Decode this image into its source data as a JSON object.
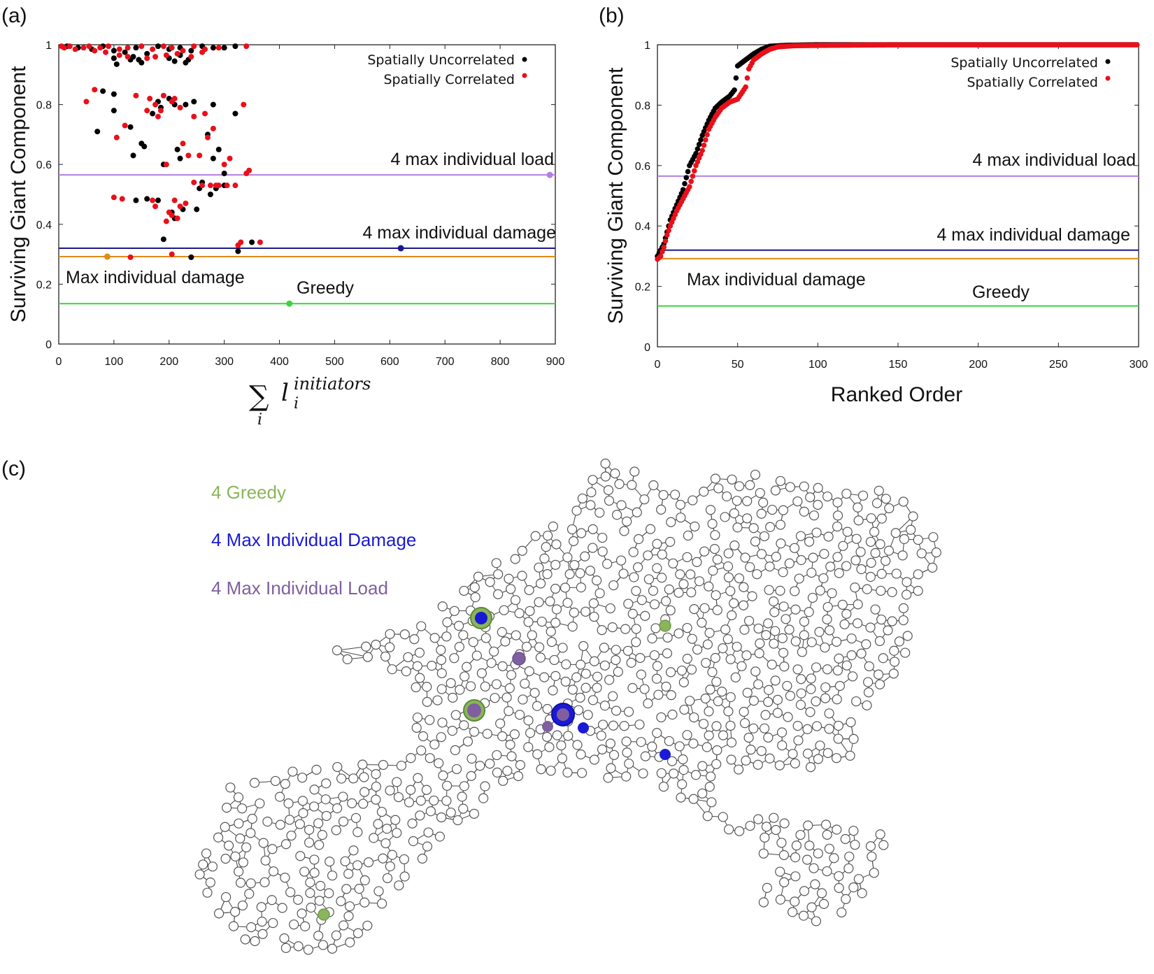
{
  "panels": {
    "a": {
      "label": "(a)",
      "chart_data": {
        "type": "scatter",
        "ylabel": "Surviving Giant Component",
        "xlabel": "∑ l_i^initiators",
        "xlabel_parts": {
          "sum": "∑",
          "base": "l",
          "sub": "i",
          "sup": "initiators",
          "under": "i"
        },
        "xlim": [
          0,
          900
        ],
        "ylim": [
          0,
          1
        ],
        "xticks": [
          "0",
          "100",
          "200",
          "300",
          "400",
          "500",
          "600",
          "700",
          "800",
          "900"
        ],
        "yticks": [
          "0",
          "0.2",
          "0.4",
          "0.6",
          "0.8",
          "1"
        ],
        "legend": {
          "placement": "top-right",
          "entries": [
            "Spatially Uncorrelated",
            "Spatially Correlated"
          ]
        },
        "reference_lines": [
          {
            "name": "4 max individual load",
            "label": "4 max individual load",
            "y": 0.565,
            "color": "#b57fe0",
            "marker_x": 890
          },
          {
            "name": "4 max individual damage",
            "label": "4 max individual damage",
            "y": 0.32,
            "color": "#1a1a8c",
            "marker_x": 620
          },
          {
            "name": "Max individual damage",
            "label": "Max individual damage",
            "y": 0.292,
            "color": "#e08a1a",
            "marker_x": 88
          },
          {
            "name": "Greedy",
            "label": "Greedy",
            "y": 0.135,
            "color": "#39d639",
            "marker_x": 418
          }
        ],
        "series": [
          {
            "name": "Spatially Uncorrelated",
            "color": "#000000",
            "points": [
              [
                15,
                0.995
              ],
              [
                35,
                0.99
              ],
              [
                60,
                0.985
              ],
              [
                80,
                0.995
              ],
              [
                100,
                0.98
              ],
              [
                120,
                0.975
              ],
              [
                140,
                0.99
              ],
              [
                160,
                0.97
              ],
              [
                180,
                0.995
              ],
              [
                200,
                0.985
              ],
              [
                220,
                0.99
              ],
              [
                240,
                0.98
              ],
              [
                260,
                0.995
              ],
              [
                280,
                0.99
              ],
              [
                300,
                0.99
              ],
              [
                320,
                0.995
              ],
              [
                100,
                0.955
              ],
              [
                105,
                0.935
              ],
              [
                130,
                0.95
              ],
              [
                135,
                0.96
              ],
              [
                145,
                0.95
              ],
              [
                150,
                0.94
              ],
              [
                200,
                0.955
              ],
              [
                210,
                0.945
              ],
              [
                220,
                0.965
              ],
              [
                230,
                0.94
              ],
              [
                235,
                0.95
              ],
              [
                70,
                0.71
              ],
              [
                80,
                0.845
              ],
              [
                100,
                0.835
              ],
              [
                100,
                0.78
              ],
              [
                130,
                0.725
              ],
              [
                135,
                0.63
              ],
              [
                150,
                0.67
              ],
              [
                155,
                0.66
              ],
              [
                170,
                0.77
              ],
              [
                180,
                0.81
              ],
              [
                185,
                0.79
              ],
              [
                190,
                0.6
              ],
              [
                200,
                0.82
              ],
              [
                210,
                0.8
              ],
              [
                215,
                0.65
              ],
              [
                220,
                0.62
              ],
              [
                230,
                0.8
              ],
              [
                245,
                0.81
              ],
              [
                250,
                0.45
              ],
              [
                255,
                0.52
              ],
              [
                260,
                0.54
              ],
              [
                270,
                0.7
              ],
              [
                280,
                0.8
              ],
              [
                285,
                0.52
              ],
              [
                290,
                0.65
              ],
              [
                300,
                0.57
              ],
              [
                320,
                0.77
              ],
              [
                140,
                0.48
              ],
              [
                160,
                0.485
              ],
              [
                180,
                0.48
              ],
              [
                190,
                0.35
              ],
              [
                205,
                0.44
              ],
              [
                210,
                0.42
              ],
              [
                225,
                0.45
              ],
              [
                240,
                0.29
              ],
              [
                275,
                0.5
              ],
              [
                280,
                0.62
              ],
              [
                300,
                0.53
              ],
              [
                325,
                0.31
              ],
              [
                350,
                0.34
              ]
            ]
          },
          {
            "name": "Spatially Correlated",
            "color": "#e8101a",
            "points": [
              [
                5,
                0.995
              ],
              [
                10,
                0.99
              ],
              [
                20,
                0.995
              ],
              [
                30,
                0.985
              ],
              [
                45,
                0.99
              ],
              [
                55,
                0.995
              ],
              [
                65,
                0.98
              ],
              [
                75,
                0.99
              ],
              [
                90,
                0.995
              ],
              [
                110,
                0.985
              ],
              [
                125,
                0.99
              ],
              [
                150,
                0.995
              ],
              [
                170,
                0.985
              ],
              [
                190,
                0.995
              ],
              [
                205,
                0.99
              ],
              [
                225,
                0.98
              ],
              [
                245,
                0.995
              ],
              [
                265,
                0.985
              ],
              [
                290,
                0.99
              ],
              [
                340,
                0.995
              ],
              [
                85,
                0.975
              ],
              [
                110,
                0.965
              ],
              [
                125,
                0.96
              ],
              [
                160,
                0.955
              ],
              [
                175,
                0.96
              ],
              [
                195,
                0.965
              ],
              [
                215,
                0.97
              ],
              [
                240,
                0.96
              ],
              [
                260,
                0.975
              ],
              [
                50,
                0.81
              ],
              [
                65,
                0.85
              ],
              [
                105,
                0.69
              ],
              [
                120,
                0.73
              ],
              [
                140,
                0.83
              ],
              [
                160,
                0.78
              ],
              [
                165,
                0.82
              ],
              [
                175,
                0.8
              ],
              [
                180,
                0.76
              ],
              [
                185,
                0.78
              ],
              [
                190,
                0.83
              ],
              [
                195,
                0.6
              ],
              [
                205,
                0.81
              ],
              [
                210,
                0.82
              ],
              [
                220,
                0.79
              ],
              [
                225,
                0.67
              ],
              [
                235,
                0.63
              ],
              [
                245,
                0.76
              ],
              [
                255,
                0.63
              ],
              [
                265,
                0.77
              ],
              [
                270,
                0.69
              ],
              [
                280,
                0.72
              ],
              [
                290,
                0.53
              ],
              [
                300,
                0.6
              ],
              [
                310,
                0.62
              ],
              [
                320,
                0.53
              ],
              [
                335,
                0.8
              ],
              [
                340,
                0.57
              ],
              [
                345,
                0.58
              ],
              [
                100,
                0.49
              ],
              [
                115,
                0.485
              ],
              [
                170,
                0.48
              ],
              [
                175,
                0.46
              ],
              [
                195,
                0.41
              ],
              [
                200,
                0.44
              ],
              [
                205,
                0.43
              ],
              [
                210,
                0.48
              ],
              [
                215,
                0.42
              ],
              [
                220,
                0.46
              ],
              [
                230,
                0.47
              ],
              [
                245,
                0.54
              ],
              [
                260,
                0.53
              ],
              [
                275,
                0.53
              ],
              [
                285,
                0.53
              ],
              [
                305,
                0.53
              ],
              [
                325,
                0.33
              ],
              [
                330,
                0.34
              ],
              [
                365,
                0.34
              ],
              [
                205,
                0.3
              ],
              [
                130,
                0.29
              ]
            ]
          }
        ]
      }
    },
    "b": {
      "label": "(b)",
      "chart_data": {
        "type": "scatter",
        "ylabel": "Surviving Giant Component",
        "xlabel": "Ranked Order",
        "xlim": [
          0,
          300
        ],
        "ylim": [
          0,
          1
        ],
        "xticks": [
          "0",
          "50",
          "100",
          "150",
          "200",
          "250",
          "300"
        ],
        "yticks": [
          "0",
          "0.2",
          "0.4",
          "0.6",
          "0.8",
          "1"
        ],
        "legend": {
          "placement": "top-right",
          "entries": [
            "Spatially Uncorrelated",
            "Spatially Correlated"
          ]
        },
        "reference_lines": [
          {
            "name": "4 max individual load",
            "label": "4 max individual load",
            "y": 0.565,
            "color": "#b57fe0"
          },
          {
            "name": "4 max individual damage",
            "label": "4 max individual damage",
            "y": 0.32,
            "color": "#1a1a8c"
          },
          {
            "name": "Max individual damage",
            "label": "Max individual damage",
            "y": 0.292,
            "color": "#e08a1a"
          },
          {
            "name": "Greedy",
            "label": "Greedy",
            "y": 0.135,
            "color": "#39d639"
          }
        ],
        "series": [
          {
            "name": "Spatially Uncorrelated",
            "color": "#000000",
            "curve": [
              [
                0,
                0.3
              ],
              [
                2,
                0.32
              ],
              [
                4,
                0.34
              ],
              [
                6,
                0.38
              ],
              [
                8,
                0.42
              ],
              [
                12,
                0.47
              ],
              [
                16,
                0.52
              ],
              [
                20,
                0.6
              ],
              [
                24,
                0.64
              ],
              [
                28,
                0.7
              ],
              [
                32,
                0.75
              ],
              [
                36,
                0.79
              ],
              [
                40,
                0.81
              ],
              [
                45,
                0.83
              ],
              [
                48,
                0.85
              ],
              [
                50,
                0.93
              ],
              [
                55,
                0.95
              ],
              [
                60,
                0.97
              ],
              [
                65,
                0.985
              ],
              [
                70,
                0.995
              ],
              [
                80,
                0.998
              ],
              [
                100,
                1.0
              ],
              [
                150,
                1.0
              ],
              [
                200,
                1.0
              ],
              [
                250,
                1.0
              ],
              [
                300,
                1.0
              ]
            ]
          },
          {
            "name": "Spatially Correlated",
            "color": "#e8101a",
            "curve": [
              [
                0,
                0.29
              ],
              [
                2,
                0.3
              ],
              [
                4,
                0.33
              ],
              [
                6,
                0.37
              ],
              [
                8,
                0.4
              ],
              [
                12,
                0.45
              ],
              [
                16,
                0.49
              ],
              [
                20,
                0.53
              ],
              [
                24,
                0.6
              ],
              [
                28,
                0.65
              ],
              [
                32,
                0.72
              ],
              [
                36,
                0.76
              ],
              [
                40,
                0.79
              ],
              [
                45,
                0.81
              ],
              [
                50,
                0.82
              ],
              [
                55,
                0.86
              ],
              [
                57,
                0.92
              ],
              [
                60,
                0.95
              ],
              [
                65,
                0.97
              ],
              [
                70,
                0.985
              ],
              [
                75,
                0.993
              ],
              [
                85,
                0.997
              ],
              [
                100,
                0.998
              ],
              [
                150,
                1.0
              ],
              [
                200,
                1.0
              ],
              [
                250,
                1.0
              ],
              [
                300,
                1.0
              ]
            ]
          }
        ]
      }
    },
    "c": {
      "label": "(c)",
      "legend": [
        {
          "label": "4 Greedy",
          "color": "#8ab55a"
        },
        {
          "label": "4 Max Individual Damage",
          "color": "#1a1ad6"
        },
        {
          "label": "4 Max Individual Load",
          "color": "#7f5f9f"
        }
      ],
      "node_fill": "#ffffff",
      "node_stroke": "#555555",
      "edge_color": "#444444"
    }
  }
}
